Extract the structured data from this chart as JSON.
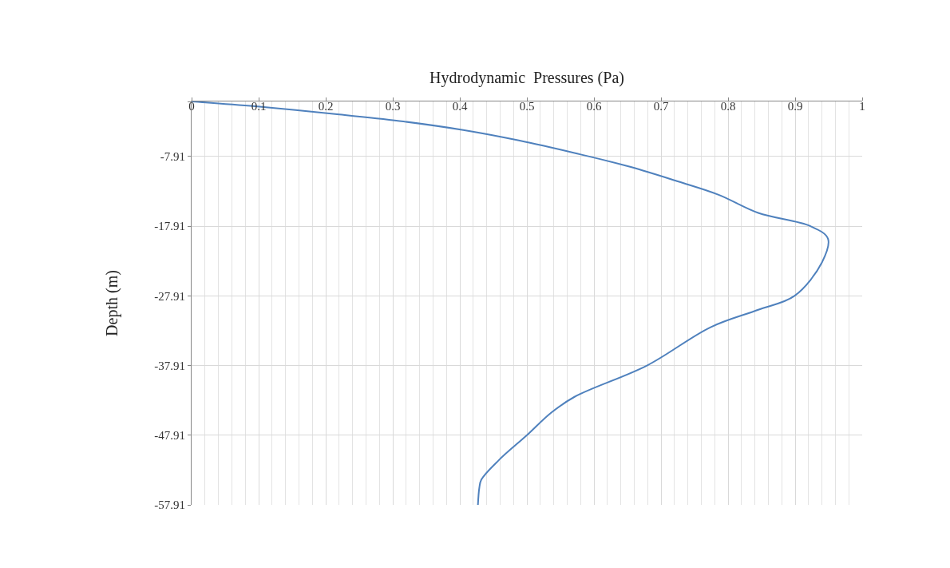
{
  "chart_data": {
    "type": "line",
    "xlabel": "Hydrodynamic  Pressures (Pa)",
    "ylabel": "Depth (m)",
    "series": [
      {
        "color": "#4f81bd",
        "x": [
          0,
          0.095,
          0.214,
          0.31,
          0.405,
          0.488,
          0.571,
          0.655,
          0.726,
          0.786,
          0.845,
          0.923,
          0.949,
          0.94,
          0.899,
          0.845,
          0.774,
          0.679,
          0.571,
          0.536,
          0.5,
          0.458,
          0.432,
          0.429,
          0.427
        ],
        "values": [
          0,
          -0.7,
          -1.8,
          -2.8,
          -4.1,
          -5.6,
          -7.4,
          -9.4,
          -11.5,
          -13.4,
          -16.0,
          -17.91,
          -19.7,
          -23.1,
          -27.91,
          -29.9,
          -32.4,
          -37.91,
          -42.4,
          -44.7,
          -47.91,
          -51.5,
          -54.3,
          -55.5,
          -57.91
        ]
      }
    ],
    "xlim": [
      0,
      1
    ],
    "xticks": [
      0,
      0.1,
      0.2,
      0.3,
      0.4,
      0.5,
      0.6,
      0.7,
      0.8,
      0.9,
      1
    ],
    "ylim": [
      -57.91,
      0
    ],
    "yticks": [
      {
        "value": 0,
        "label": null
      },
      -7.91,
      -17.91,
      -27.91,
      -37.91,
      -47.91,
      -57.91
    ],
    "grid": true,
    "marker": "none",
    "line_style": "solid"
  }
}
